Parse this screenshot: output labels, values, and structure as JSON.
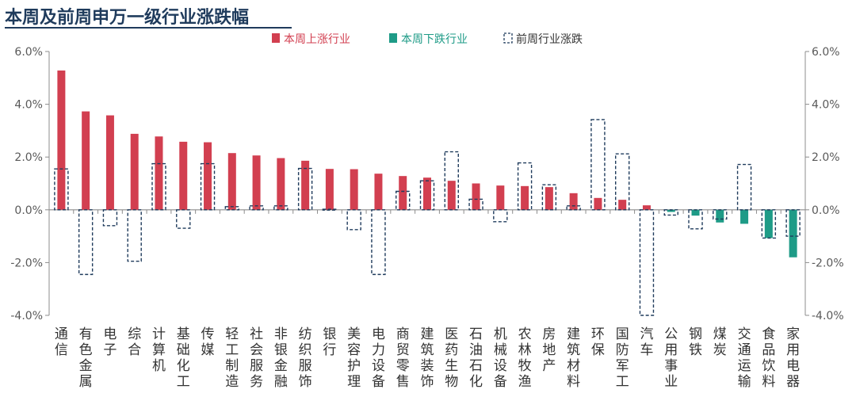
{
  "title": "本周及前周申万一级行业涨跌幅",
  "colors": {
    "up": "#d23f50",
    "down": "#1e9b87",
    "prev": "#1f3b5c",
    "axis": "#8c8c8c"
  },
  "legend": [
    {
      "label": "本周上涨行业",
      "style": "up"
    },
    {
      "label": "本周下跌行业",
      "style": "down"
    },
    {
      "label": "前周行业涨跌",
      "style": "prev"
    }
  ],
  "chart_data": {
    "type": "bar",
    "title": "本周及前周申万一级行业涨跌幅",
    "ylim": [
      -4,
      6
    ],
    "yticks": [
      6,
      4,
      2,
      0,
      -2,
      -4
    ],
    "ytick_labels": [
      "6.0%",
      "4.0%",
      "2.0%",
      "0.0%",
      "-2.0%",
      "-4.0%"
    ],
    "categories": [
      "通信",
      "有色金属",
      "电子",
      "综合",
      "计算机",
      "基础化工",
      "传媒",
      "轻工制造",
      "社会服务",
      "非银金融",
      "纺织服饰",
      "银行",
      "美容护理",
      "电力设备",
      "商贸零售",
      "建筑装饰",
      "医药生物",
      "石油石化",
      "机械设备",
      "农林牧渔",
      "房地产",
      "建筑材料",
      "环保",
      "国防军工",
      "汽车",
      "公用事业",
      "钢铁",
      "煤炭",
      "交通运输",
      "食品饮料",
      "家用电器"
    ],
    "series": [
      {
        "name": "本周上涨行业",
        "kind": "this_week",
        "values": [
          5.28,
          3.73,
          3.58,
          2.88,
          2.78,
          2.58,
          2.56,
          2.15,
          2.06,
          1.96,
          1.86,
          1.55,
          1.54,
          1.37,
          1.28,
          1.22,
          1.1,
          1.0,
          0.92,
          0.9,
          0.86,
          0.63,
          0.45,
          0.38,
          0.17,
          -0.08,
          -0.22,
          -0.48,
          -0.53,
          -1.07,
          -1.8
        ]
      },
      {
        "name": "前周行业涨跌",
        "kind": "prev_week",
        "values": [
          1.55,
          -2.45,
          -0.6,
          -1.95,
          1.75,
          -0.7,
          1.75,
          0.12,
          0.15,
          0.15,
          1.57,
          0.02,
          -0.75,
          -2.45,
          0.7,
          1.1,
          2.2,
          0.4,
          -0.45,
          1.78,
          0.95,
          0.15,
          3.42,
          2.12,
          -4.0,
          -0.2,
          -0.72,
          -0.35,
          1.72,
          -1.07,
          -1.0
        ]
      }
    ]
  }
}
